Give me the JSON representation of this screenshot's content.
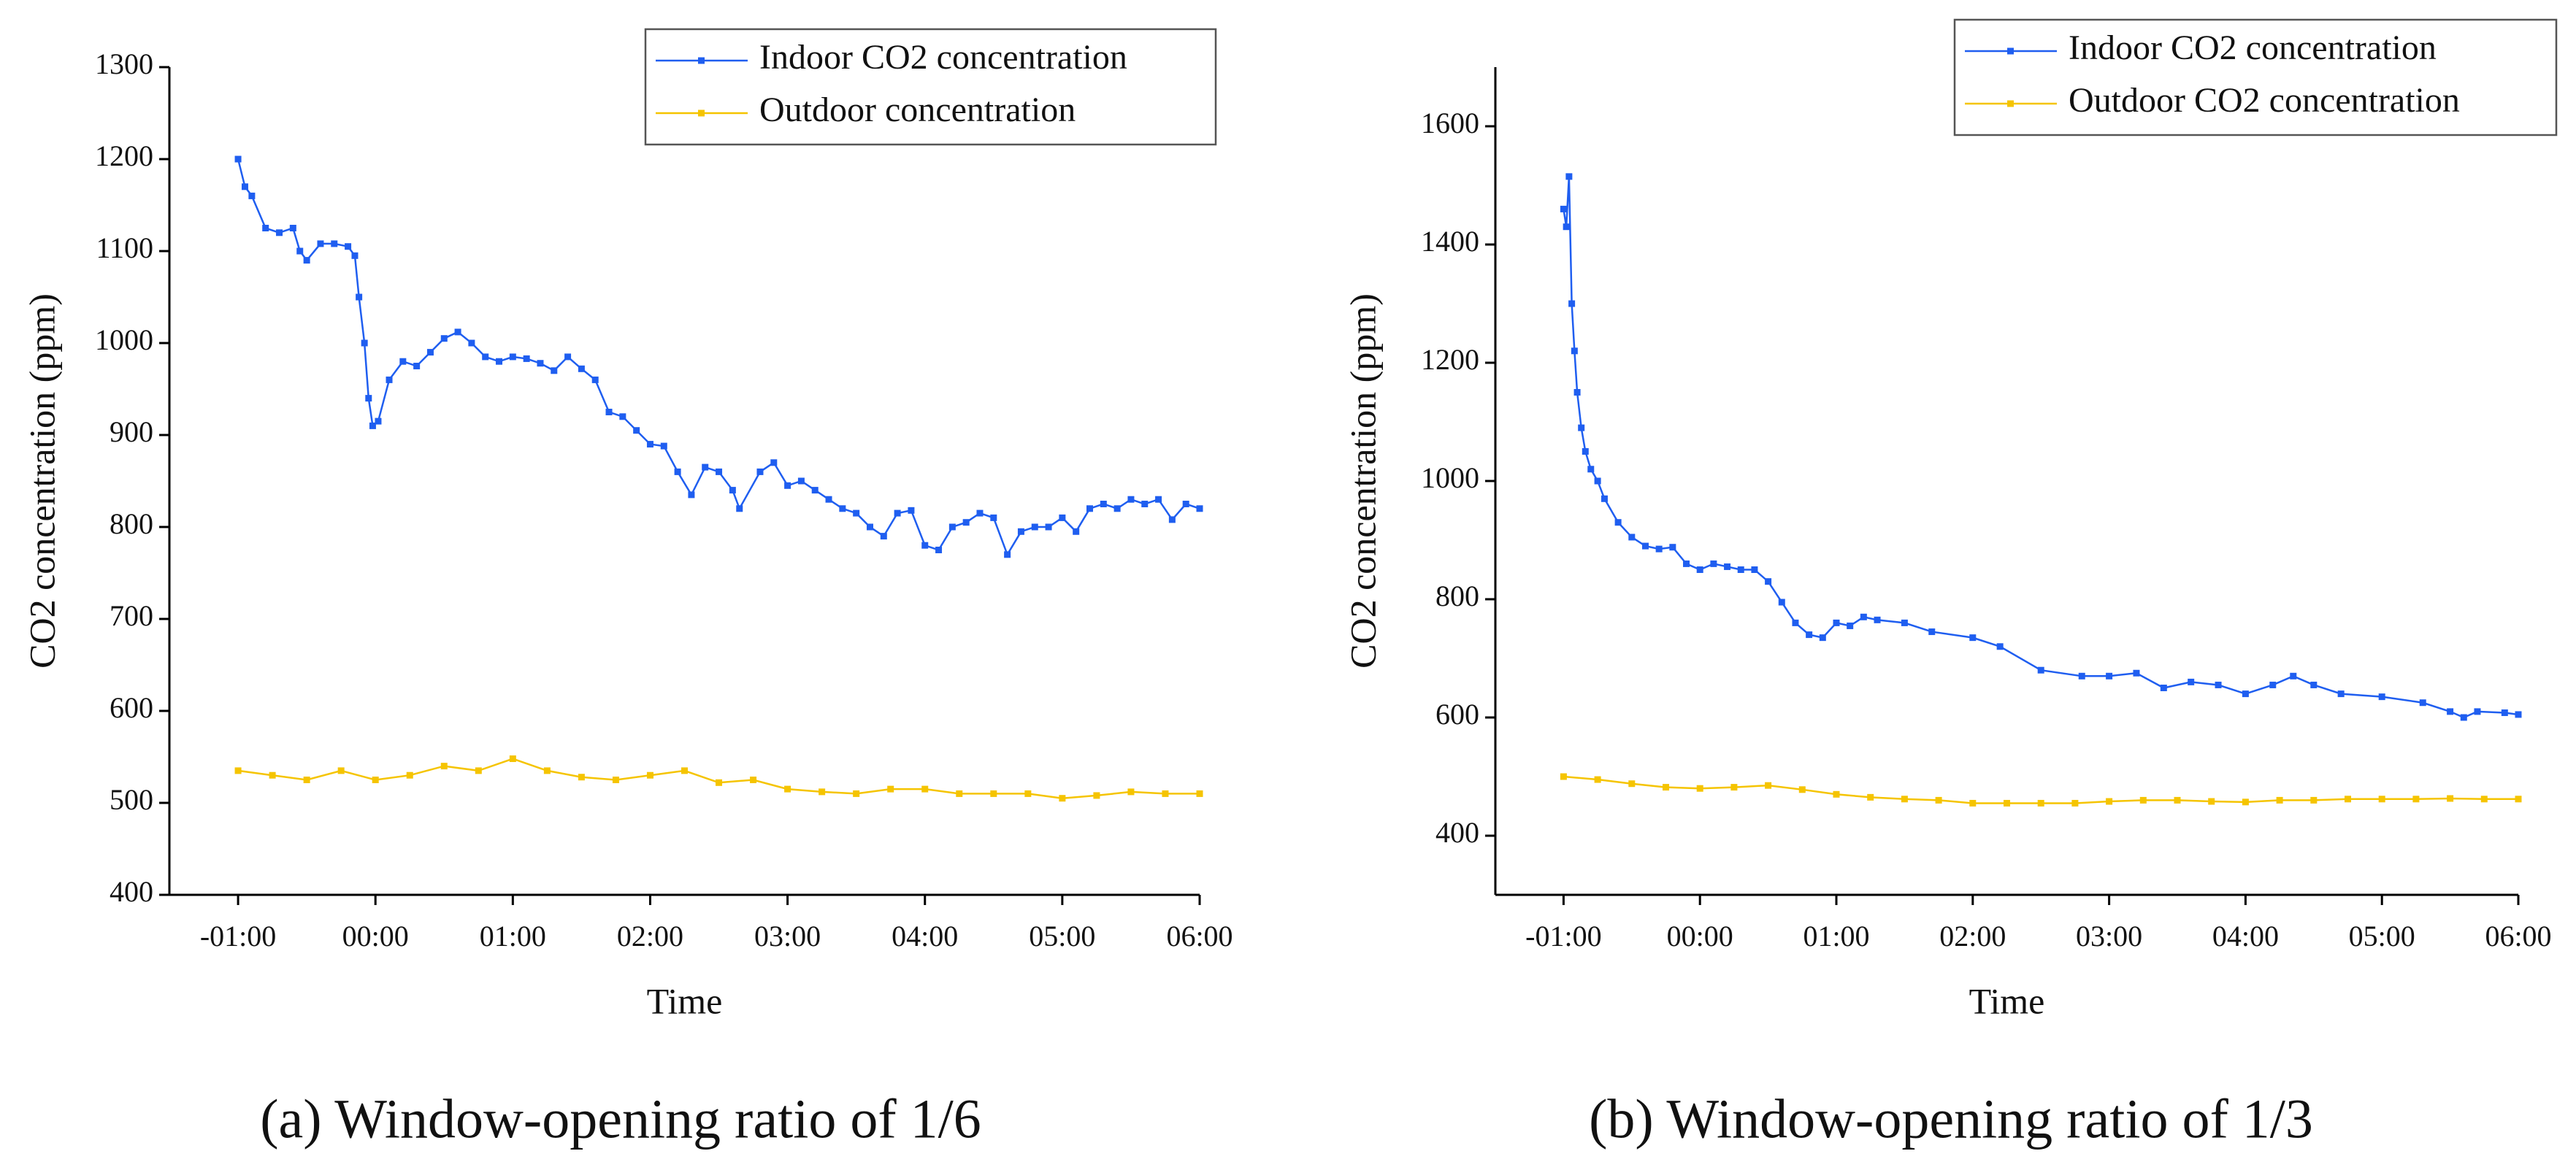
{
  "chart_data": [
    {
      "type": "line",
      "caption": "(a) Window-opening ratio of 1/6",
      "x_label": "Time",
      "y_label": "CO2 concentration (ppm)",
      "xlim": [
        -1.5,
        6
      ],
      "xticks": [
        {
          "value": -1,
          "label": "-01:00"
        },
        {
          "value": 0,
          "label": "00:00"
        },
        {
          "value": 1,
          "label": "01:00"
        },
        {
          "value": 2,
          "label": "02:00"
        },
        {
          "value": 3,
          "label": "03:00"
        },
        {
          "value": 4,
          "label": "04:00"
        },
        {
          "value": 5,
          "label": "05:00"
        },
        {
          "value": 6,
          "label": "06:00"
        }
      ],
      "ylim": [
        400,
        1300
      ],
      "yticks": [
        400,
        500,
        600,
        700,
        800,
        900,
        1000,
        1100,
        1200,
        1300
      ],
      "legend": "upper right",
      "series": [
        {
          "name": "Indoor CO2 concentration",
          "color": "#1f5ef0",
          "x": [
            -1.0,
            -0.95,
            -0.9,
            -0.8,
            -0.7,
            -0.6,
            -0.55,
            -0.5,
            -0.4,
            -0.3,
            -0.2,
            -0.15,
            -0.12,
            -0.08,
            -0.05,
            -0.02,
            0.02,
            0.1,
            0.2,
            0.3,
            0.4,
            0.5,
            0.6,
            0.7,
            0.8,
            0.9,
            1.0,
            1.1,
            1.2,
            1.3,
            1.4,
            1.5,
            1.6,
            1.7,
            1.8,
            1.9,
            2.0,
            2.1,
            2.2,
            2.3,
            2.4,
            2.5,
            2.6,
            2.65,
            2.8,
            2.9,
            3.0,
            3.1,
            3.2,
            3.3,
            3.4,
            3.5,
            3.6,
            3.7,
            3.8,
            3.9,
            4.0,
            4.1,
            4.2,
            4.3,
            4.4,
            4.5,
            4.6,
            4.7,
            4.8,
            4.9,
            5.0,
            5.1,
            5.2,
            5.3,
            5.4,
            5.5,
            5.6,
            5.7,
            5.8,
            5.9,
            6.0
          ],
          "values": [
            1200,
            1170,
            1160,
            1125,
            1120,
            1125,
            1100,
            1090,
            1108,
            1108,
            1105,
            1095,
            1050,
            1000,
            940,
            910,
            915,
            960,
            980,
            975,
            990,
            1005,
            1012,
            1000,
            985,
            980,
            985,
            983,
            978,
            970,
            985,
            972,
            960,
            925,
            920,
            905,
            890,
            888,
            860,
            835,
            865,
            860,
            840,
            820,
            860,
            870,
            845,
            850,
            840,
            830,
            820,
            815,
            800,
            790,
            815,
            818,
            780,
            775,
            800,
            805,
            815,
            810,
            770,
            795,
            800,
            800,
            810,
            795,
            820,
            825,
            820,
            830,
            825,
            830,
            808,
            825,
            820
          ]
        },
        {
          "name": "Outdoor concentration",
          "color": "#f5c400",
          "x": [
            -1,
            -0.75,
            -0.5,
            -0.25,
            0,
            0.25,
            0.5,
            0.75,
            1.0,
            1.25,
            1.5,
            1.75,
            2.0,
            2.25,
            2.5,
            2.75,
            3.0,
            3.25,
            3.5,
            3.75,
            4.0,
            4.25,
            4.5,
            4.75,
            5.0,
            5.25,
            5.5,
            5.75,
            6.0
          ],
          "values": [
            535,
            530,
            525,
            535,
            525,
            530,
            540,
            535,
            548,
            535,
            528,
            525,
            530,
            535,
            522,
            525,
            515,
            512,
            510,
            515,
            515,
            510,
            510,
            510,
            505,
            508,
            512,
            510,
            510
          ]
        }
      ]
    },
    {
      "type": "line",
      "caption": "(b) Window-opening ratio of 1/3",
      "x_label": "Time",
      "y_label": "CO2 concentration (ppm)",
      "xlim": [
        -1.5,
        6
      ],
      "xticks": [
        {
          "value": -1,
          "label": "-01:00"
        },
        {
          "value": 0,
          "label": "00:00"
        },
        {
          "value": 1,
          "label": "01:00"
        },
        {
          "value": 2,
          "label": "02:00"
        },
        {
          "value": 3,
          "label": "03:00"
        },
        {
          "value": 4,
          "label": "04:00"
        },
        {
          "value": 5,
          "label": "05:00"
        },
        {
          "value": 6,
          "label": "06:00"
        }
      ],
      "ylim": [
        300,
        1700
      ],
      "yticks": [
        400,
        600,
        800,
        1000,
        1200,
        1400,
        1600
      ],
      "legend": "upper right",
      "series": [
        {
          "name": "Indoor CO2 concentration",
          "color": "#1f5ef0",
          "x": [
            -1.0,
            -0.98,
            -0.96,
            -0.94,
            -0.92,
            -0.9,
            -0.87,
            -0.84,
            -0.8,
            -0.75,
            -0.7,
            -0.6,
            -0.5,
            -0.4,
            -0.3,
            -0.2,
            -0.1,
            0,
            0.1,
            0.2,
            0.3,
            0.4,
            0.5,
            0.6,
            0.7,
            0.8,
            0.9,
            1.0,
            1.1,
            1.2,
            1.3,
            1.5,
            1.7,
            2.0,
            2.2,
            2.5,
            2.8,
            3.0,
            3.2,
            3.4,
            3.6,
            3.8,
            4.0,
            4.2,
            4.35,
            4.5,
            4.7,
            5.0,
            5.3,
            5.5,
            5.6,
            5.7,
            5.9,
            6.0
          ],
          "values": [
            1460,
            1430,
            1515,
            1300,
            1220,
            1150,
            1090,
            1050,
            1020,
            1000,
            970,
            930,
            905,
            890,
            885,
            888,
            860,
            850,
            860,
            855,
            850,
            850,
            830,
            795,
            760,
            740,
            735,
            760,
            755,
            770,
            765,
            760,
            745,
            735,
            720,
            680,
            670,
            670,
            675,
            650,
            660,
            655,
            640,
            655,
            670,
            655,
            640,
            635,
            625,
            610,
            600,
            610,
            608,
            605
          ]
        },
        {
          "name": "Outdoor CO2 concentration",
          "color": "#f5c400",
          "x": [
            -1,
            -0.75,
            -0.5,
            -0.25,
            0,
            0.25,
            0.5,
            0.75,
            1.0,
            1.25,
            1.5,
            1.75,
            2.0,
            2.25,
            2.5,
            2.75,
            3.0,
            3.25,
            3.5,
            3.75,
            4.0,
            4.25,
            4.5,
            4.75,
            5.0,
            5.25,
            5.5,
            5.75,
            6.0
          ],
          "values": [
            500,
            495,
            488,
            482,
            480,
            482,
            485,
            478,
            470,
            465,
            462,
            460,
            455,
            455,
            455,
            455,
            458,
            460,
            460,
            458,
            457,
            460,
            460,
            462,
            462,
            462,
            463,
            462,
            462
          ]
        }
      ]
    }
  ]
}
